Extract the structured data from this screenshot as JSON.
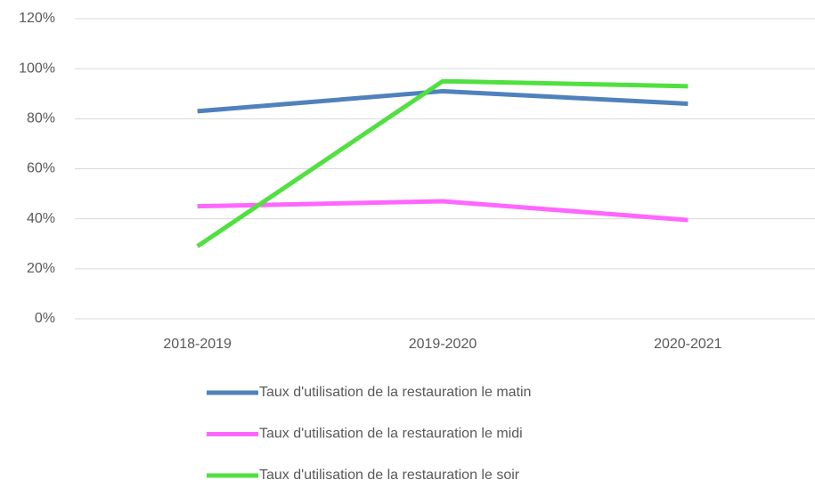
{
  "chart_data": {
    "type": "line",
    "categories": [
      "2018-2019",
      "2019-2020",
      "2020-2021"
    ],
    "series": [
      {
        "name": "Taux d'utilisation de la restauration le matin",
        "color": "#4f81bd",
        "values": [
          83,
          91,
          86
        ]
      },
      {
        "name": "Taux d'utilisation de la restauration le midi",
        "color": "#ff66ff",
        "values": [
          45,
          47,
          39.5
        ]
      },
      {
        "name": "Taux d'utilisation de la restauration le soir",
        "color": "#50e040",
        "values": [
          29,
          95,
          93
        ]
      }
    ],
    "ylim": [
      0,
      120
    ],
    "yticks": [
      {
        "value": 0,
        "label": "0%"
      },
      {
        "value": 20,
        "label": "20%"
      },
      {
        "value": 40,
        "label": "40%"
      },
      {
        "value": 60,
        "label": "60%"
      },
      {
        "value": 80,
        "label": "80%"
      },
      {
        "value": 100,
        "label": "100%"
      },
      {
        "value": 120,
        "label": "120%"
      }
    ],
    "grid": true,
    "legend": "bottom"
  }
}
